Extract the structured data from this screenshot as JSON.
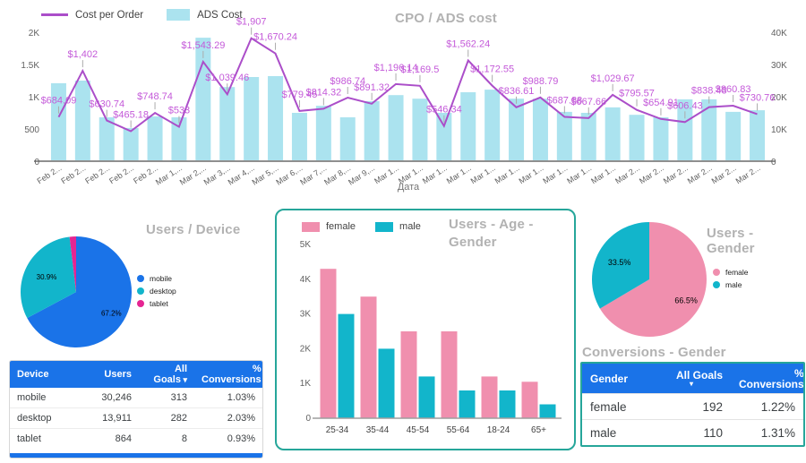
{
  "chart_data": [
    {
      "type": "bar",
      "combo": "bar+line",
      "title": "CPO / ADS cost",
      "xlabel": "Дата",
      "left_axis_max": 2000,
      "right_axis_max": 40000,
      "left_ticks": [
        "0",
        "500",
        "1K",
        "1.5K",
        "2K"
      ],
      "right_ticks": [
        "0",
        "10K",
        "20K",
        "30K",
        "40K"
      ],
      "x": [
        "Feb 2...",
        "Feb 2...",
        "Feb 2...",
        "Feb 2...",
        "Feb 2...",
        "Mar 1,...",
        "Mar 2,...",
        "Mar 3,...",
        "Mar 4,...",
        "Mar 5,...",
        "Mar 6,...",
        "Mar 7,...",
        "Mar 8,...",
        "Mar 9,...",
        "Mar 1...",
        "Mar 1...",
        "Mar 1...",
        "Mar 1...",
        "Mar 1...",
        "Mar 1...",
        "Mar 1...",
        "Mar 1...",
        "Mar 1...",
        "Mar 1...",
        "Mar 2...",
        "Mar 2...",
        "Mar 2...",
        "Mar 2...",
        "Mar 2...",
        "Mar 2..."
      ],
      "series": [
        {
          "name": "Cost per Order",
          "type": "line",
          "axis": "left",
          "color": "#ab4ec9",
          "label_color": "#c45ad9",
          "values": [
            684.09,
            1402,
            630.74,
            465.18,
            748.74,
            533,
            1543.29,
            1039.46,
            1907,
            1670.24,
            779.45,
            814.32,
            986.74,
            891.32,
            1196.14,
            1169.5,
            546.34,
            1562.24,
            1172.55,
            836.61,
            988.79,
            687.88,
            667.66,
            1029.67,
            795.57,
            654.91,
            606.43,
            838.48,
            860.83,
            730.76
          ],
          "labels": [
            "$684.09",
            "$1,402",
            "$630.74",
            "$465.18",
            "$748.74",
            "$533",
            "$1,543.29",
            "$1,039.46",
            "$1,907",
            "$1,670.24",
            "$779.45",
            "$814.32",
            "$986.74",
            "$891.32",
            "$1,196.14",
            "$1,169.5",
            "$546.34",
            "$1,562.24",
            "$1,172.55",
            "$836.61",
            "$988.79",
            "$687.88",
            "$667.66",
            "$1,029.67",
            "$795.57",
            "$654.91",
            "$606.43",
            "$838.48",
            "$860.83",
            "$730.76"
          ]
        },
        {
          "name": "ADS Cost",
          "type": "bar",
          "axis": "right",
          "color": "#abe3ef",
          "values": [
            24200,
            25000,
            13600,
            10300,
            13900,
            13600,
            38300,
            23000,
            26100,
            26400,
            15000,
            17200,
            13600,
            18600,
            20500,
            19400,
            15000,
            21400,
            22200,
            19400,
            19400,
            15300,
            15000,
            16700,
            14400,
            13600,
            19200,
            19200,
            15300,
            15800
          ]
        }
      ]
    },
    {
      "type": "pie",
      "title": "Users / Device",
      "slices": [
        {
          "label": "mobile",
          "pct": 67.2,
          "color": "#1a73e8",
          "show_label": "67.2%"
        },
        {
          "label": "desktop",
          "pct": 30.9,
          "color": "#12b5cb",
          "show_label": "30.9%"
        },
        {
          "label": "tablet",
          "pct": 1.9,
          "color": "#e52592",
          "show_label": ""
        }
      ]
    },
    {
      "type": "bar",
      "title": "Users - Age - Gender",
      "categories": [
        "25-34",
        "35-44",
        "45-54",
        "55-64",
        "18-24",
        "65+"
      ],
      "ylim": [
        0,
        5000
      ],
      "yticks": [
        "0",
        "1K",
        "2K",
        "3K",
        "4K",
        "5K"
      ],
      "series": [
        {
          "name": "female",
          "color": "#f08fae",
          "values": [
            4300,
            3500,
            2500,
            2500,
            1200,
            1050
          ]
        },
        {
          "name": "male",
          "color": "#12b5cb",
          "values": [
            3000,
            2000,
            1200,
            800,
            800,
            400
          ]
        }
      ]
    },
    {
      "type": "pie",
      "title": "Users - Gender",
      "slices": [
        {
          "label": "female",
          "pct": 66.5,
          "color": "#f08fae",
          "show_label": "66.5%"
        },
        {
          "label": "male",
          "pct": 33.5,
          "color": "#12b5cb",
          "show_label": "33.5%"
        }
      ]
    }
  ],
  "device_table": {
    "headers": [
      "Device",
      "Users",
      "All Goals",
      "% Conversions"
    ],
    "sort_col": 2,
    "rows": [
      [
        "mobile",
        "30,246",
        "313",
        "1.03%"
      ],
      [
        "desktop",
        "13,911",
        "282",
        "2.03%"
      ],
      [
        "tablet",
        "864",
        "8",
        "0.93%"
      ]
    ]
  },
  "gender_table": {
    "title": "Conversions - Gender",
    "headers": [
      "Gender",
      "All Goals",
      "% Conversions"
    ],
    "sort_col": 1,
    "rows": [
      [
        "female",
        "192",
        "1.22%"
      ],
      [
        "male",
        "110",
        "1.31%"
      ]
    ]
  }
}
